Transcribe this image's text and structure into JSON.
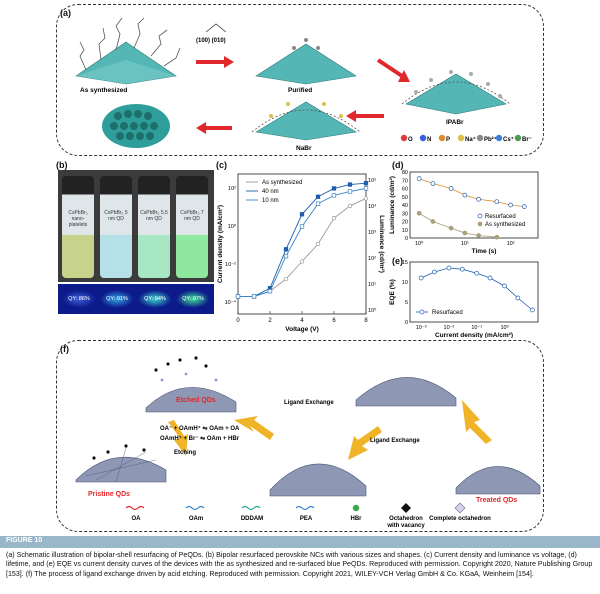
{
  "panels": {
    "a": {
      "letter": "(a)",
      "facets": "(100)    (010)",
      "stage_as_synth": "As synthesized",
      "stage_purified": "Purified",
      "stage_ipabr": "IPABr",
      "stage_nabr": "NaBr",
      "legend": [
        "O",
        "N",
        "P",
        "Na⁺",
        "Pb²⁺",
        "Cs⁺",
        "Br⁻"
      ],
      "legend_colors": [
        "#e23a3a",
        "#3a5ee0",
        "#e08a2c",
        "#d9c24a",
        "#8a8a8a",
        "#3e7dd6",
        "#4f9a4f"
      ]
    },
    "b": {
      "letter": "(b)",
      "vials": [
        "CsPbBr₃ nano-platelets",
        "CsPbBr₃ 5 nm QD",
        "CsPbBr₃ 5.5 nm QD",
        "CsPbBr₃ 7 nm QD"
      ],
      "qy": [
        "QY: 86%",
        "QY: 91%",
        "QY: 94%",
        "QY: 97%"
      ]
    },
    "c": {
      "letter": "(c)",
      "legend": [
        "As synthesized",
        "40 nm",
        "10 nm"
      ],
      "xlabel": "Voltage (V)",
      "ylabel_left": "Current density (mA/cm²)",
      "ylabel_right": "Luminance (cd/m²)",
      "xticks": [
        "0",
        "2",
        "4",
        "6",
        "8"
      ],
      "yticks_left": [
        "10²",
        "10⁰",
        "10⁻²",
        "10⁻⁴"
      ],
      "yticks_right": [
        "10⁵",
        "10⁴",
        "10³",
        "10²",
        "10¹",
        "10⁰"
      ]
    },
    "d": {
      "letter": "(d)",
      "ylabel": "Luminance (cd/m²)",
      "xlabel": "Time (s)",
      "yticks": [
        "80",
        "70",
        "60",
        "50",
        "40",
        "30",
        "20",
        "10",
        "0"
      ],
      "xticks": [
        "10⁰",
        "10¹",
        "10²"
      ],
      "legend": [
        "Resurfaced",
        "As synthesized"
      ]
    },
    "e": {
      "letter": "(e)",
      "ylabel": "EQE (%)",
      "xlabel": "Current density (mA/cm²)",
      "yticks": [
        "15",
        "10",
        "5",
        "0"
      ],
      "xticks": [
        "10⁻³",
        "10⁻²",
        "10⁻¹",
        "10⁰"
      ],
      "legend": [
        "Resurfaced"
      ]
    },
    "f": {
      "letter": "(f)",
      "etched": "Etched QDs",
      "pristine": "Pristine QDs",
      "treated": "Treated QDs",
      "ligand_exchange_1": "Ligand Exchange",
      "ligand_exchange_2": "Ligand Exchange",
      "etching": "Etching",
      "eq1": "OA⁻ + OAmH⁺ ⇋ OAm + OA",
      "eq2": "OAmH⁺ + Br⁻ ⇋ OAm + HBr",
      "legend": [
        "OA",
        "OAm",
        "DDDAM",
        "PEA",
        "HBr",
        "Octahedron with vacancy",
        "Complete octahedron"
      ]
    }
  },
  "chart_data": [
    {
      "type": "line",
      "title": "",
      "xlabel": "Voltage (V)",
      "ylabel": "Current density (mA/cm²)",
      "y2label": "Luminance (cd/m²)",
      "xlim": [
        0,
        8
      ],
      "yscale": "log",
      "series": [
        {
          "name": "As synthesized",
          "x": [
            0,
            1,
            2,
            3,
            4,
            5,
            6,
            7,
            8
          ],
          "values": [
            0.0001,
            0.0001,
            0.0002,
            0.001,
            0.01,
            0.1,
            3,
            15,
            40
          ]
        },
        {
          "name": "40 nm",
          "x": [
            0,
            1,
            2,
            3,
            4,
            5,
            6,
            7,
            8
          ],
          "values": [
            0.0001,
            0.0001,
            0.0003,
            0.05,
            5,
            50,
            150,
            250,
            300
          ]
        },
        {
          "name": "10 nm",
          "x": [
            0,
            1,
            2,
            3,
            4,
            5,
            6,
            7,
            8
          ],
          "values": [
            0.0001,
            0.0001,
            0.0002,
            0.02,
            1,
            20,
            60,
            100,
            150
          ]
        }
      ]
    },
    {
      "type": "scatter",
      "title": "",
      "xlabel": "Time (s)",
      "ylabel": "Luminance (cd/m²)",
      "xscale": "log",
      "ylim": [
        0,
        80
      ],
      "series": [
        {
          "name": "Resurfaced",
          "x": [
            1,
            2,
            5,
            10,
            20,
            50,
            100,
            200
          ],
          "values": [
            72,
            66,
            60,
            52,
            47,
            44,
            40,
            38
          ]
        },
        {
          "name": "As synthesized",
          "x": [
            1,
            2,
            5,
            10,
            20,
            50
          ],
          "values": [
            30,
            20,
            12,
            6,
            3,
            1
          ]
        }
      ]
    },
    {
      "type": "line",
      "title": "",
      "xlabel": "Current density (mA/cm²)",
      "ylabel": "EQE (%)",
      "xscale": "log",
      "ylim": [
        0,
        15
      ],
      "series": [
        {
          "name": "Resurfaced",
          "x": [
            0.001,
            0.003,
            0.01,
            0.03,
            0.1,
            0.3,
            1,
            3,
            10
          ],
          "values": [
            11,
            12.5,
            13.5,
            13.2,
            12.2,
            11,
            9,
            6,
            3
          ]
        }
      ]
    }
  ],
  "figure": {
    "label": "FIGURE 10",
    "caption": "(a) Schematic illustration of bipolar-shell resurfacing of PeQDs. (b) Bipolar resurfaced perovskite NCs with various sizes and shapes. (c) Current density and luminance vs voltage, (d) lifetime, and (e) EQE vs current density curves of the devices with the as synthesized and re-surfaced blue PeQDs. Reproduced with permission. Copyright 2020, Nature Publishing Group [153]. (f) The process of ligand exchange driven by acid etching. Reproduced with permission. Copyright 2021, WILEY-VCH Verlag GmbH & Co. KGaA, Weinheim [154]."
  }
}
